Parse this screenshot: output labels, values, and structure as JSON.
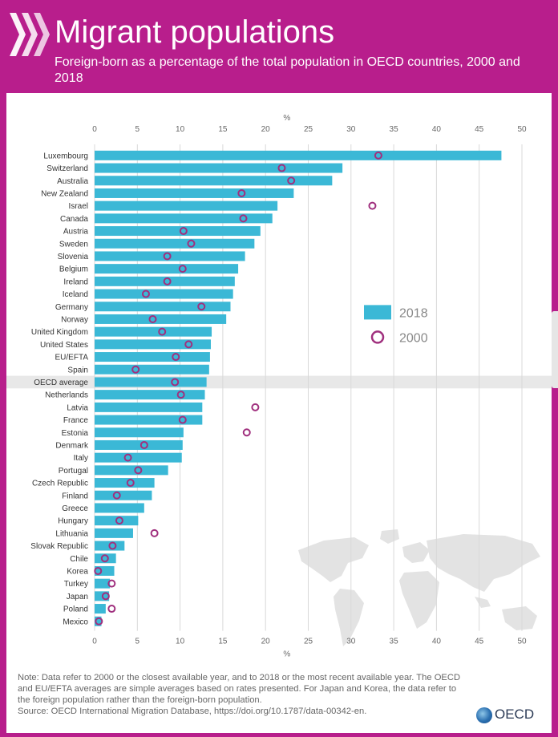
{
  "header": {
    "title": "Migrant populations",
    "subtitle": "Foreign-born as a percentage of the total population in OECD countries, 2000 and 2018"
  },
  "colors": {
    "brand": "#b81e8c",
    "bar": "#3bb8d6",
    "marker": "#a0307e",
    "highlight_row": "#e8e8e8",
    "grid": "#d9d9d9",
    "map": "#e3e3e3"
  },
  "chart_data": {
    "type": "bar",
    "orientation": "horizontal",
    "axis_unit_label": "%",
    "xlim": [
      0,
      50
    ],
    "xticks": [
      0,
      5,
      10,
      15,
      20,
      25,
      30,
      35,
      40,
      45,
      50
    ],
    "grid": true,
    "legend_position": "right",
    "highlighted_category": "OECD average",
    "categories": [
      "Luxembourg",
      "Switzerland",
      "Australia",
      "New Zealand",
      "Israel",
      "Canada",
      "Austria",
      "Sweden",
      "Slovenia",
      "Belgium",
      "Ireland",
      "Iceland",
      "Germany",
      "Norway",
      "United Kingdom",
      "United States",
      "EU/EFTA",
      "Spain",
      "OECD average",
      "Netherlands",
      "Latvia",
      "France",
      "Estonia",
      "Denmark",
      "Italy",
      "Portugal",
      "Czech Republic",
      "Finland",
      "Greece",
      "Hungary",
      "Lithuania",
      "Slovak Republic",
      "Chile",
      "Korea",
      "Turkey",
      "Japan",
      "Poland",
      "Mexico"
    ],
    "series": [
      {
        "name": "2018",
        "style": "bar",
        "values": [
          47.6,
          29.0,
          27.8,
          23.3,
          21.4,
          20.8,
          19.4,
          18.7,
          17.6,
          16.8,
          16.4,
          16.2,
          15.9,
          15.4,
          13.7,
          13.6,
          13.5,
          13.4,
          13.1,
          12.9,
          12.6,
          12.6,
          10.4,
          10.3,
          10.2,
          8.6,
          7.0,
          6.7,
          5.8,
          5.1,
          4.5,
          3.5,
          2.5,
          2.3,
          1.8,
          1.7,
          1.3,
          0.8
        ]
      },
      {
        "name": "2000",
        "style": "circle-marker",
        "values": [
          33.2,
          21.9,
          23.0,
          17.2,
          32.5,
          17.4,
          10.4,
          11.3,
          8.5,
          10.3,
          8.5,
          6.0,
          12.5,
          6.8,
          7.9,
          11.0,
          9.5,
          4.8,
          9.4,
          10.1,
          18.8,
          10.3,
          17.8,
          5.8,
          3.9,
          5.1,
          4.2,
          2.6,
          null,
          2.9,
          7.0,
          2.1,
          1.2,
          0.4,
          2.0,
          1.3,
          2.0,
          0.5
        ]
      }
    ]
  },
  "note": {
    "text": "Note: Data refer to 2000 or the closest available year, and to 2018 or the most recent available year. The OECD and EU/EFTA averages are simple averages based on rates presented. For Japan and Korea, the data refer to the foreign population rather than the foreign-born population.",
    "source": "Source: OECD International Migration Database, https://doi.org/10.1787/data-00342-en."
  },
  "footer": {
    "logo_text": "OECD"
  }
}
